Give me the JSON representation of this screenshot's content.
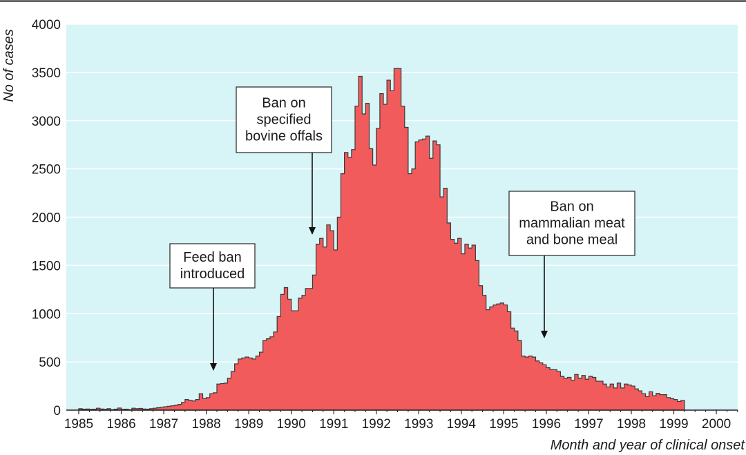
{
  "colors": {
    "plot_background": "#d7f4f6",
    "bars_fill": "#f25b5b",
    "bars_stroke": "#3a3a3a",
    "grid": "#ffffff",
    "text": "#1a1a1a"
  },
  "chart_data": {
    "type": "area",
    "style": "monthly histogram (step area)",
    "title": "",
    "xlabel": "Month and year of clinical onset",
    "ylabel": "No of cases",
    "ylim": [
      0,
      4000
    ],
    "yticks": [
      "0",
      "500",
      "1000",
      "1500",
      "2000",
      "2500",
      "3000",
      "3500",
      "4000"
    ],
    "grid": "horizontal lines on",
    "year_ticks": [
      "1985",
      "1986",
      "1987",
      "1988",
      "1989",
      "1990",
      "1991",
      "1992",
      "1993",
      "1994",
      "1995",
      "1996",
      "1997",
      "1998",
      "1999",
      "2000"
    ],
    "series": [
      {
        "x_start": "1985-01",
        "interval": "month",
        "values": [
          15,
          10,
          12,
          8,
          10,
          20,
          12,
          8,
          15,
          5,
          10,
          22,
          8,
          10,
          5,
          20,
          15,
          18,
          12,
          10,
          15,
          20,
          25,
          30,
          35,
          40,
          45,
          50,
          60,
          80,
          110,
          100,
          95,
          110,
          170,
          120,
          130,
          170,
          180,
          270,
          275,
          280,
          330,
          400,
          480,
          530,
          540,
          550,
          540,
          530,
          560,
          600,
          720,
          740,
          760,
          810,
          970,
          1200,
          1270,
          1150,
          1030,
          1030,
          1160,
          1190,
          1260,
          1260,
          1400,
          1720,
          1780,
          1690,
          1920,
          1860,
          1660,
          2000,
          2450,
          2670,
          2620,
          2700,
          3150,
          3460,
          3070,
          3180,
          2710,
          2540,
          2920,
          3280,
          3170,
          3420,
          3310,
          3540,
          3540,
          3150,
          2930,
          2450,
          2500,
          2780,
          2800,
          2810,
          2840,
          2610,
          2790,
          2750,
          2210,
          2300,
          1940,
          1770,
          1730,
          1780,
          1620,
          1720,
          1680,
          1710,
          1550,
          1290,
          1190,
          1040,
          1070,
          1090,
          1100,
          1110,
          1090,
          1020,
          850,
          820,
          720,
          560,
          550,
          560,
          550,
          510,
          490,
          470,
          440,
          420,
          420,
          400,
          350,
          330,
          340,
          310,
          370,
          330,
          360,
          320,
          350,
          340,
          300,
          300,
          270,
          240,
          270,
          230,
          280,
          230,
          270,
          260,
          250,
          220,
          200,
          170,
          140,
          190,
          150,
          175,
          160,
          160,
          130,
          120,
          110,
          90,
          100
        ]
      }
    ],
    "annotations": [
      {
        "lines": [
          "Feed ban",
          "introduced"
        ],
        "at": "1988-01"
      },
      {
        "lines": [
          "Ban on",
          "specified",
          "bovine offals"
        ],
        "at": "1990-05"
      },
      {
        "lines": [
          "Ban on",
          "mammalian meat",
          "and bone meal"
        ],
        "at": "1995-11"
      }
    ]
  }
}
